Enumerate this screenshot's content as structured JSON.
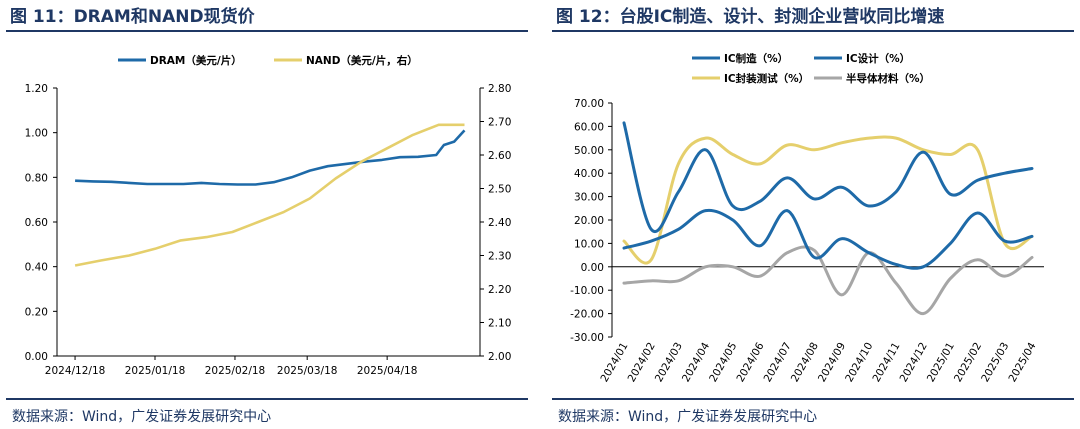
{
  "left": {
    "title": "图 11：DRAM和NAND现货价",
    "source": "数据来源：Wind，广发证券发展研究中心",
    "chart_data": {
      "type": "line",
      "x_ticks": [
        "2024/12/18",
        "2025/01/18",
        "2025/02/18",
        "2025/03/18",
        "2025/04/18"
      ],
      "y_left": {
        "range": [
          0.0,
          1.2
        ],
        "ticks": [
          "0.00",
          "0.20",
          "0.40",
          "0.60",
          "0.80",
          "1.00",
          "1.20"
        ]
      },
      "y_right": {
        "range": [
          2.0,
          2.8
        ],
        "ticks": [
          "2.00",
          "2.10",
          "2.20",
          "2.30",
          "2.40",
          "2.50",
          "2.60",
          "2.70",
          "2.80"
        ]
      },
      "series": [
        {
          "name": "DRAM（美元/片）",
          "axis": "left",
          "color": "#1e6aa8",
          "points": [
            [
              "2024-12-18",
              0.785
            ],
            [
              "2024-12-25",
              0.782
            ],
            [
              "2025-01-01",
              0.78
            ],
            [
              "2025-01-08",
              0.775
            ],
            [
              "2025-01-15",
              0.77
            ],
            [
              "2025-01-22",
              0.77
            ],
            [
              "2025-01-29",
              0.77
            ],
            [
              "2025-02-05",
              0.775
            ],
            [
              "2025-02-12",
              0.77
            ],
            [
              "2025-02-19",
              0.768
            ],
            [
              "2025-02-26",
              0.768
            ],
            [
              "2025-03-05",
              0.778
            ],
            [
              "2025-03-12",
              0.8
            ],
            [
              "2025-03-19",
              0.83
            ],
            [
              "2025-03-26",
              0.85
            ],
            [
              "2025-04-02",
              0.86
            ],
            [
              "2025-04-09",
              0.87
            ],
            [
              "2025-04-16",
              0.878
            ],
            [
              "2025-04-23",
              0.89
            ],
            [
              "2025-04-30",
              0.892
            ],
            [
              "2025-05-07",
              0.9
            ],
            [
              "2025-05-10",
              0.945
            ],
            [
              "2025-05-14",
              0.96
            ],
            [
              "2025-05-18",
              1.01
            ]
          ]
        },
        {
          "name": "NAND（美元/片，右）",
          "axis": "right",
          "color": "#e5cf6c",
          "points": [
            [
              "2024-12-18",
              2.27
            ],
            [
              "2024-12-28",
              2.285
            ],
            [
              "2025-01-08",
              2.3
            ],
            [
              "2025-01-18",
              2.32
            ],
            [
              "2025-01-28",
              2.345
            ],
            [
              "2025-02-07",
              2.355
            ],
            [
              "2025-02-17",
              2.37
            ],
            [
              "2025-02-27",
              2.4
            ],
            [
              "2025-03-09",
              2.43
            ],
            [
              "2025-03-19",
              2.47
            ],
            [
              "2025-03-29",
              2.53
            ],
            [
              "2025-04-08",
              2.58
            ],
            [
              "2025-04-18",
              2.62
            ],
            [
              "2025-04-28",
              2.66
            ],
            [
              "2025-05-08",
              2.69
            ],
            [
              "2025-05-18",
              2.69
            ]
          ]
        }
      ]
    }
  },
  "right": {
    "title": "图 12：台股IC制造、设计、封测企业营收同比增速",
    "source": "数据来源：Wind，广发证券发展研究中心",
    "chart_data": {
      "type": "line",
      "categories": [
        "2024/01",
        "2024/02",
        "2024/03",
        "2024/04",
        "2024/05",
        "2024/06",
        "2024/07",
        "2024/08",
        "2024/09",
        "2024/10",
        "2024/11",
        "2024/12",
        "2025/01",
        "2025/02",
        "2025/03",
        "2025/04"
      ],
      "y": {
        "range": [
          -30,
          70
        ],
        "ticks": [
          "70.00",
          "60.00",
          "50.00",
          "40.00",
          "30.00",
          "20.00",
          "10.00",
          "0.00",
          "-10.00",
          "-20.00",
          "-30.00"
        ]
      },
      "series": [
        {
          "name": "IC制造（%）",
          "color": "#1e6aa8",
          "values": [
            61.5,
            16,
            32,
            50,
            26,
            28,
            38,
            29,
            34,
            26,
            32,
            49,
            31,
            37,
            40,
            42
          ]
        },
        {
          "name": "IC设计（%）",
          "color": "#1e6aa8",
          "values": [
            8,
            11,
            16,
            24,
            20,
            9,
            24,
            4,
            12,
            6,
            1,
            0,
            10,
            23,
            11,
            13
          ]
        },
        {
          "name": "IC封装测试（%）",
          "color": "#e5cf6c",
          "values": [
            11,
            3,
            44,
            55,
            48,
            44,
            52,
            50,
            53,
            55,
            55,
            50,
            48,
            50,
            10,
            13
          ]
        },
        {
          "name": "半导体材料（%）",
          "color": "#a6a6a6",
          "values": [
            -7,
            -6,
            -6,
            0,
            0,
            -4,
            6,
            7,
            -12,
            6,
            -7,
            -20,
            -5,
            3,
            -4,
            4
          ]
        }
      ]
    }
  }
}
